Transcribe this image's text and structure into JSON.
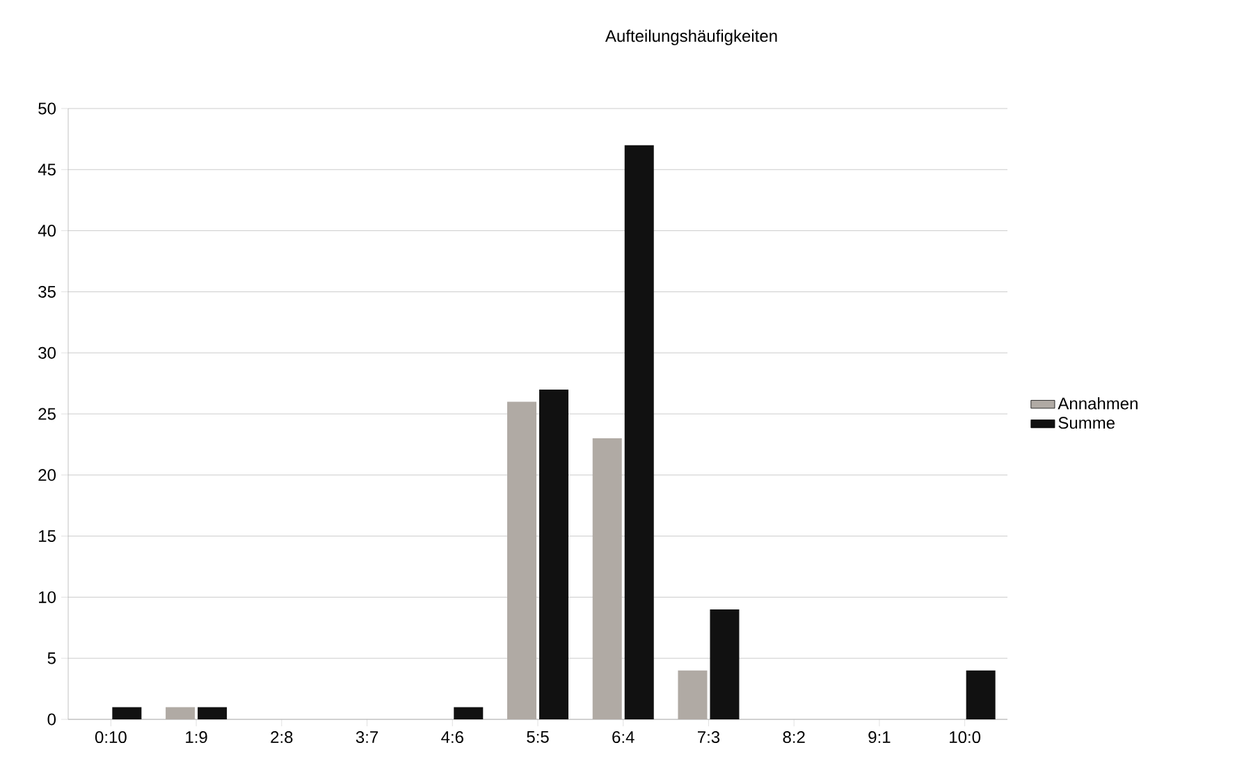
{
  "chart_data": {
    "type": "bar",
    "title": "Aufteilungshäufigkeiten",
    "categories": [
      "0:10",
      "1:9",
      "2:8",
      "3:7",
      "4:6",
      "5:5",
      "6:4",
      "7:3",
      "8:2",
      "9:1",
      "10:0"
    ],
    "series": [
      {
        "name": "Annahmen",
        "color": "#b0aaa4",
        "values": [
          0,
          1,
          0,
          0,
          0,
          26,
          23,
          4,
          0,
          0,
          0
        ]
      },
      {
        "name": "Summe",
        "color": "#111111",
        "values": [
          1,
          1,
          0,
          0,
          1,
          27,
          47,
          9,
          0,
          0,
          4
        ]
      }
    ],
    "ylim": [
      0,
      50
    ],
    "yticks": [
      0,
      5,
      10,
      15,
      20,
      25,
      30,
      35,
      40,
      45,
      50
    ],
    "grid": "y",
    "legend": "right"
  }
}
